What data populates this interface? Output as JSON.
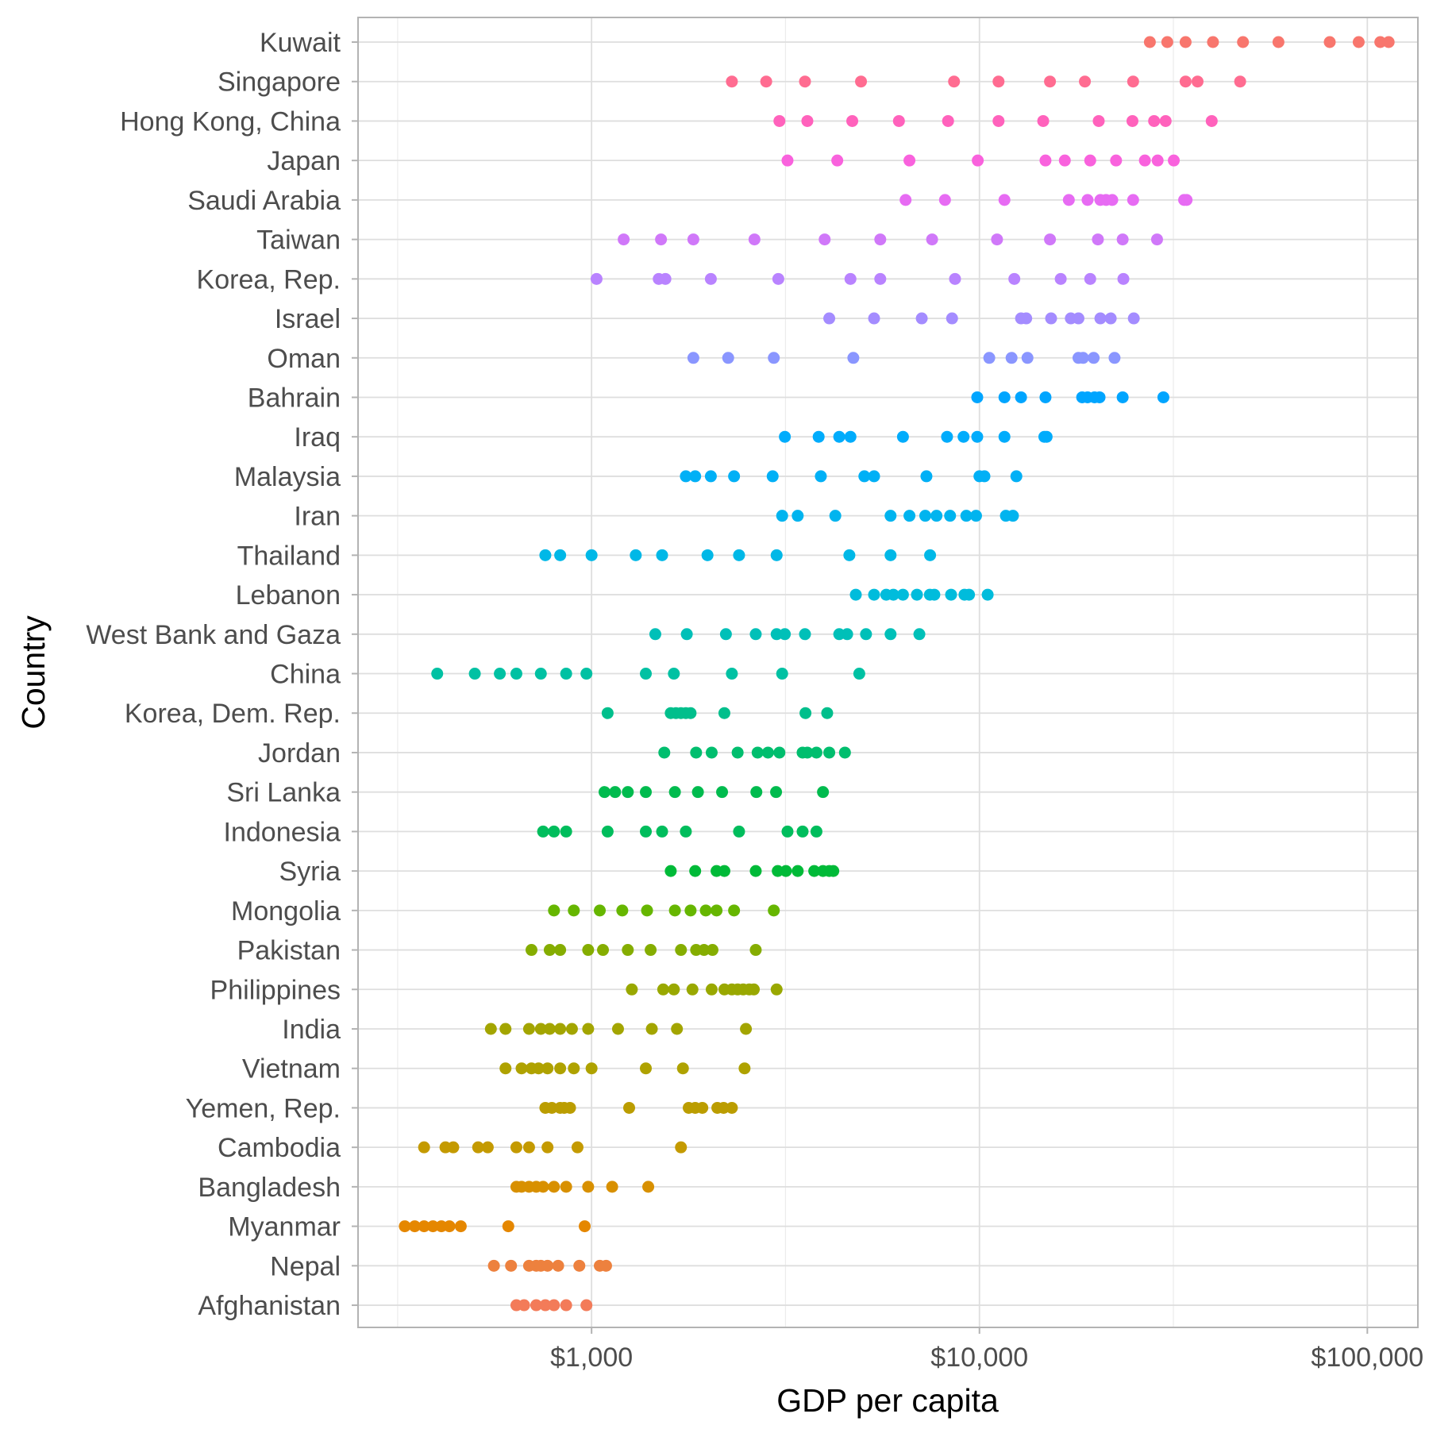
{
  "chart_data": {
    "type": "scatter",
    "xlabel": "GDP per capita",
    "ylabel": "Country",
    "x_scale": "log10",
    "xlim": [
      250,
      135000
    ],
    "x_ticks": [
      1000,
      10000,
      100000
    ],
    "x_tick_labels": [
      "$1,000",
      "$10,000",
      "$100,000"
    ],
    "grid": true,
    "legend": "none",
    "categories": [
      "Kuwait",
      "Singapore",
      "Hong Kong, China",
      "Japan",
      "Saudi Arabia",
      "Taiwan",
      "Korea, Rep.",
      "Israel",
      "Oman",
      "Bahrain",
      "Iraq",
      "Malaysia",
      "Iran",
      "Thailand",
      "Lebanon",
      "West Bank and Gaza",
      "China",
      "Korea, Dem. Rep.",
      "Jordan",
      "Sri Lanka",
      "Indonesia",
      "Syria",
      "Mongolia",
      "Pakistan",
      "Philippines",
      "India",
      "Vietnam",
      "Yemen, Rep.",
      "Cambodia",
      "Bangladesh",
      "Myanmar",
      "Nepal",
      "Afghanistan"
    ],
    "colors": [
      "#F8766D",
      "#FF6C91",
      "#FF62BC",
      "#F962DD",
      "#E76BF3",
      "#D078F9",
      "#B983FF",
      "#A48CFF",
      "#8A96FF",
      "#00A5FF",
      "#00ACFC",
      "#00B0F6",
      "#00B4EF",
      "#00B8E7",
      "#00BCDC",
      "#00C0B8",
      "#00C1A3",
      "#00BF8C",
      "#00BE6E",
      "#00BB4E",
      "#00BD5C",
      "#00BA38",
      "#66B600",
      "#85AD00",
      "#99A800",
      "#A3A500",
      "#AFA200",
      "#BB9D00",
      "#C49A00",
      "#D89000",
      "#E58700",
      "#ED813E",
      "#F37B59"
    ],
    "series": [
      {
        "values": [
          27500,
          30500,
          34000,
          40000,
          47800,
          59000,
          80000,
          95000,
          108000,
          113500
        ]
      },
      {
        "values": [
          2300,
          2820,
          3550,
          4950,
          8600,
          11200,
          15200,
          18700,
          24900,
          34000,
          36500,
          47000
        ]
      },
      {
        "values": [
          3050,
          3600,
          4700,
          6200,
          8300,
          11200,
          14600,
          20300,
          24800,
          28200,
          30200,
          39700
        ]
      },
      {
        "values": [
          3200,
          4300,
          6600,
          9900,
          14800,
          16600,
          19300,
          22500,
          26700,
          28800,
          31700
        ]
      },
      {
        "values": [
          6450,
          8150,
          11600,
          17000,
          19000,
          20500,
          21200,
          22000,
          24900,
          33700,
          34200
        ]
      },
      {
        "values": [
          1210,
          1510,
          1830,
          2630,
          3990,
          5550,
          7550,
          11100,
          15200,
          20200,
          23400,
          28700
        ]
      },
      {
        "values": [
          1030,
          1490,
          1550,
          2030,
          3030,
          4650,
          5550,
          8650,
          12300,
          16200,
          19300,
          23500
        ]
      },
      {
        "values": [
          4100,
          5350,
          7100,
          8500,
          12800,
          13200,
          15300,
          17200,
          18000,
          20500,
          21800,
          25000
        ]
      },
      {
        "values": [
          1830,
          2250,
          2950,
          4730,
          10600,
          12100,
          13300,
          18000,
          18500,
          19700,
          22300
        ]
      },
      {
        "values": [
          9870,
          11600,
          12800,
          14800,
          18400,
          19000,
          19800,
          20400,
          23400,
          29800
        ]
      },
      {
        "values": [
          3150,
          3850,
          4350,
          4650,
          6350,
          8250,
          9100,
          9870,
          11600,
          14700,
          14900
        ]
      },
      {
        "values": [
          1750,
          1850,
          2030,
          2330,
          2930,
          3900,
          5050,
          5350,
          7300,
          10000,
          10300,
          12450
        ]
      },
      {
        "values": [
          3100,
          3400,
          4250,
          5900,
          6600,
          7250,
          7750,
          8400,
          9250,
          9800,
          11700,
          12200
        ]
      },
      {
        "values": [
          760,
          830,
          1000,
          1300,
          1520,
          1990,
          2400,
          3000,
          4620,
          5900,
          7460
        ]
      },
      {
        "values": [
          4800,
          5350,
          5750,
          6000,
          6350,
          6900,
          7450,
          7650,
          8450,
          9150,
          9400,
          10500
        ]
      },
      {
        "values": [
          1460,
          1760,
          2220,
          2650,
          3000,
          3150,
          3550,
          4350,
          4560,
          5100,
          5900,
          7000
        ]
      },
      {
        "values": [
          400,
          500,
          580,
          640,
          740,
          860,
          970,
          1380,
          1630,
          2300,
          3100,
          4900
        ]
      },
      {
        "values": [
          1100,
          1600,
          1650,
          1700,
          1750,
          1800,
          2200,
          3560,
          4050
        ]
      },
      {
        "values": [
          1540,
          1860,
          2040,
          2380,
          2680,
          2850,
          3050,
          3500,
          3600,
          3800,
          4100,
          4500
        ]
      },
      {
        "values": [
          1080,
          1150,
          1240,
          1380,
          1640,
          1880,
          2170,
          2660,
          2990,
          3950
        ]
      },
      {
        "values": [
          750,
          800,
          860,
          1100,
          1380,
          1520,
          1750,
          2400,
          3200,
          3500,
          3800
        ]
      },
      {
        "values": [
          1600,
          1850,
          2100,
          2200,
          2650,
          3020,
          3170,
          3400,
          3750,
          3950,
          4100,
          4200
        ]
      },
      {
        "values": [
          800,
          900,
          1050,
          1200,
          1390,
          1640,
          1800,
          1970,
          2100,
          2330,
          2950
        ]
      },
      {
        "values": [
          700,
          780,
          830,
          980,
          1070,
          1240,
          1420,
          1700,
          1860,
          1950,
          2050,
          2650
        ]
      },
      {
        "values": [
          1270,
          1530,
          1630,
          1820,
          2040,
          2200,
          2300,
          2380,
          2460,
          2550,
          2620,
          3000
        ]
      },
      {
        "values": [
          550,
          600,
          690,
          740,
          780,
          830,
          890,
          980,
          1170,
          1430,
          1660,
          2500
        ]
      },
      {
        "values": [
          600,
          660,
          700,
          730,
          770,
          830,
          900,
          1000,
          1380,
          1720,
          2480
        ]
      },
      {
        "values": [
          760,
          790,
          830,
          850,
          880,
          1250,
          1780,
          1850,
          1930,
          2110,
          2190,
          2300
        ]
      },
      {
        "values": [
          370,
          420,
          440,
          510,
          540,
          640,
          690,
          770,
          920,
          1700
        ]
      },
      {
        "values": [
          640,
          660,
          690,
          720,
          750,
          800,
          860,
          980,
          1130,
          1400
        ]
      },
      {
        "values": [
          330,
          350,
          370,
          390,
          410,
          430,
          460,
          610,
          960
        ]
      },
      {
        "values": [
          560,
          620,
          690,
          720,
          740,
          770,
          820,
          930,
          1050,
          1090
        ]
      },
      {
        "values": [
          640,
          670,
          720,
          760,
          800,
          860,
          970
        ]
      }
    ]
  }
}
